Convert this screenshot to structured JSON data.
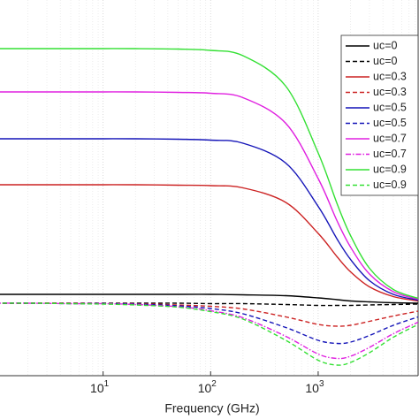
{
  "chart_data": {
    "type": "line",
    "xlabel": "Frequency (GHz)",
    "log_x": true,
    "grid": true,
    "legend": "upper right",
    "x": [
      1,
      2,
      5,
      10,
      20,
      50,
      100,
      200,
      500,
      1000,
      1500,
      2000,
      3000,
      5000,
      8500
    ],
    "xlim": [
      1.1,
      8500
    ],
    "ylim": [
      -1.64,
      6.86
    ],
    "xticks": [
      {
        "value": 10,
        "label": "10",
        "exponent": "1"
      },
      {
        "value": 100,
        "label": "10",
        "exponent": "2"
      },
      {
        "value": 1000,
        "label": "10",
        "exponent": "3"
      }
    ],
    "series": [
      {
        "name": "uc=0",
        "color": "#000000",
        "dash": "solid",
        "values": [
          0.2,
          0.2,
          0.2,
          0.2,
          0.2,
          0.2,
          0.2,
          0.19,
          0.17,
          0.12,
          0.08,
          0.05,
          0.03,
          0.01,
          0.0
        ]
      },
      {
        "name": "uc=0",
        "color": "#000000",
        "dash": "dashed",
        "values": [
          0,
          0,
          0,
          0,
          0,
          0,
          -0.01,
          -0.01,
          -0.03,
          -0.05,
          -0.05,
          -0.05,
          -0.04,
          -0.03,
          -0.02
        ]
      },
      {
        "name": "uc=0.3",
        "color": "#cc2222",
        "dash": "solid",
        "values": [
          2.68,
          2.68,
          2.68,
          2.68,
          2.68,
          2.67,
          2.66,
          2.61,
          2.28,
          1.58,
          1.05,
          0.71,
          0.37,
          0.15,
          0.05
        ]
      },
      {
        "name": "uc=0.3",
        "color": "#cc2222",
        "dash": "dashed",
        "values": [
          0,
          0,
          0,
          -0.01,
          -0.01,
          -0.04,
          -0.07,
          -0.13,
          -0.31,
          -0.48,
          -0.52,
          -0.5,
          -0.41,
          -0.29,
          -0.18
        ]
      },
      {
        "name": "uc=0.5",
        "color": "#1414b8",
        "dash": "solid",
        "values": [
          3.72,
          3.72,
          3.72,
          3.72,
          3.72,
          3.71,
          3.69,
          3.62,
          3.17,
          2.19,
          1.45,
          0.99,
          0.51,
          0.2,
          0.07
        ]
      },
      {
        "name": "uc=0.5",
        "color": "#1414b8",
        "dash": "dashed",
        "values": [
          0,
          0,
          -0.01,
          -0.01,
          -0.02,
          -0.06,
          -0.12,
          -0.24,
          -0.55,
          -0.84,
          -0.91,
          -0.88,
          -0.73,
          -0.5,
          -0.31
        ]
      },
      {
        "name": "uc=0.7",
        "color": "#e020e0",
        "dash": "solid",
        "values": [
          4.78,
          4.78,
          4.78,
          4.78,
          4.78,
          4.77,
          4.75,
          4.65,
          4.07,
          2.82,
          1.86,
          1.27,
          0.66,
          0.26,
          0.09
        ]
      },
      {
        "name": "uc=0.7",
        "color": "#e020e0",
        "dash": "dashdot",
        "values": [
          0,
          0,
          -0.01,
          -0.01,
          -0.03,
          -0.08,
          -0.17,
          -0.33,
          -0.75,
          -1.15,
          -1.25,
          -1.2,
          -1.0,
          -0.69,
          -0.43
        ]
      },
      {
        "name": "uc=0.9",
        "color": "#33e033",
        "dash": "solid",
        "values": [
          5.76,
          5.76,
          5.76,
          5.76,
          5.76,
          5.75,
          5.72,
          5.6,
          4.91,
          3.4,
          2.25,
          1.53,
          0.79,
          0.31,
          0.11
        ]
      },
      {
        "name": "uc=0.9",
        "color": "#33e033",
        "dash": "dashed",
        "values": [
          0,
          0,
          -0.01,
          -0.02,
          -0.04,
          -0.09,
          -0.19,
          -0.36,
          -0.84,
          -1.29,
          -1.4,
          -1.34,
          -1.12,
          -0.77,
          -0.48
        ]
      }
    ]
  }
}
